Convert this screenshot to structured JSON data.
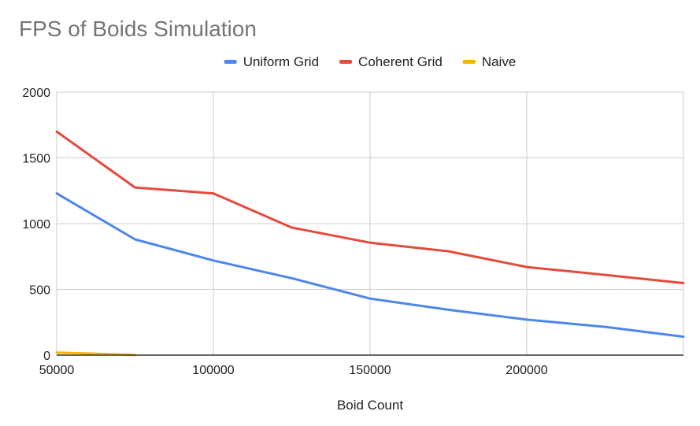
{
  "chart_data": {
    "type": "line",
    "title": "FPS of Boids Simulation",
    "xlabel": "Boid Count",
    "ylabel": "",
    "xlim": [
      50000,
      250000
    ],
    "ylim": [
      0,
      2000
    ],
    "x_ticks": [
      50000,
      100000,
      150000,
      200000
    ],
    "y_ticks": [
      0,
      500,
      1000,
      1500,
      2000
    ],
    "grid": true,
    "legend_position": "top-center",
    "series": [
      {
        "name": "Uniform Grid",
        "color": "#4e86ec",
        "x": [
          50000,
          75000,
          100000,
          125000,
          150000,
          175000,
          200000,
          225000,
          250000
        ],
        "values": [
          1230,
          880,
          720,
          585,
          430,
          345,
          270,
          215,
          140
        ]
      },
      {
        "name": "Coherent Grid",
        "color": "#e34b3b",
        "x": [
          50000,
          75000,
          100000,
          125000,
          150000,
          175000,
          200000,
          225000,
          250000
        ],
        "values": [
          1700,
          1275,
          1230,
          970,
          855,
          790,
          670,
          610,
          548
        ]
      },
      {
        "name": "Naive",
        "color": "#f5b400",
        "x": [
          50000,
          75000
        ],
        "values": [
          20,
          2
        ]
      }
    ]
  }
}
